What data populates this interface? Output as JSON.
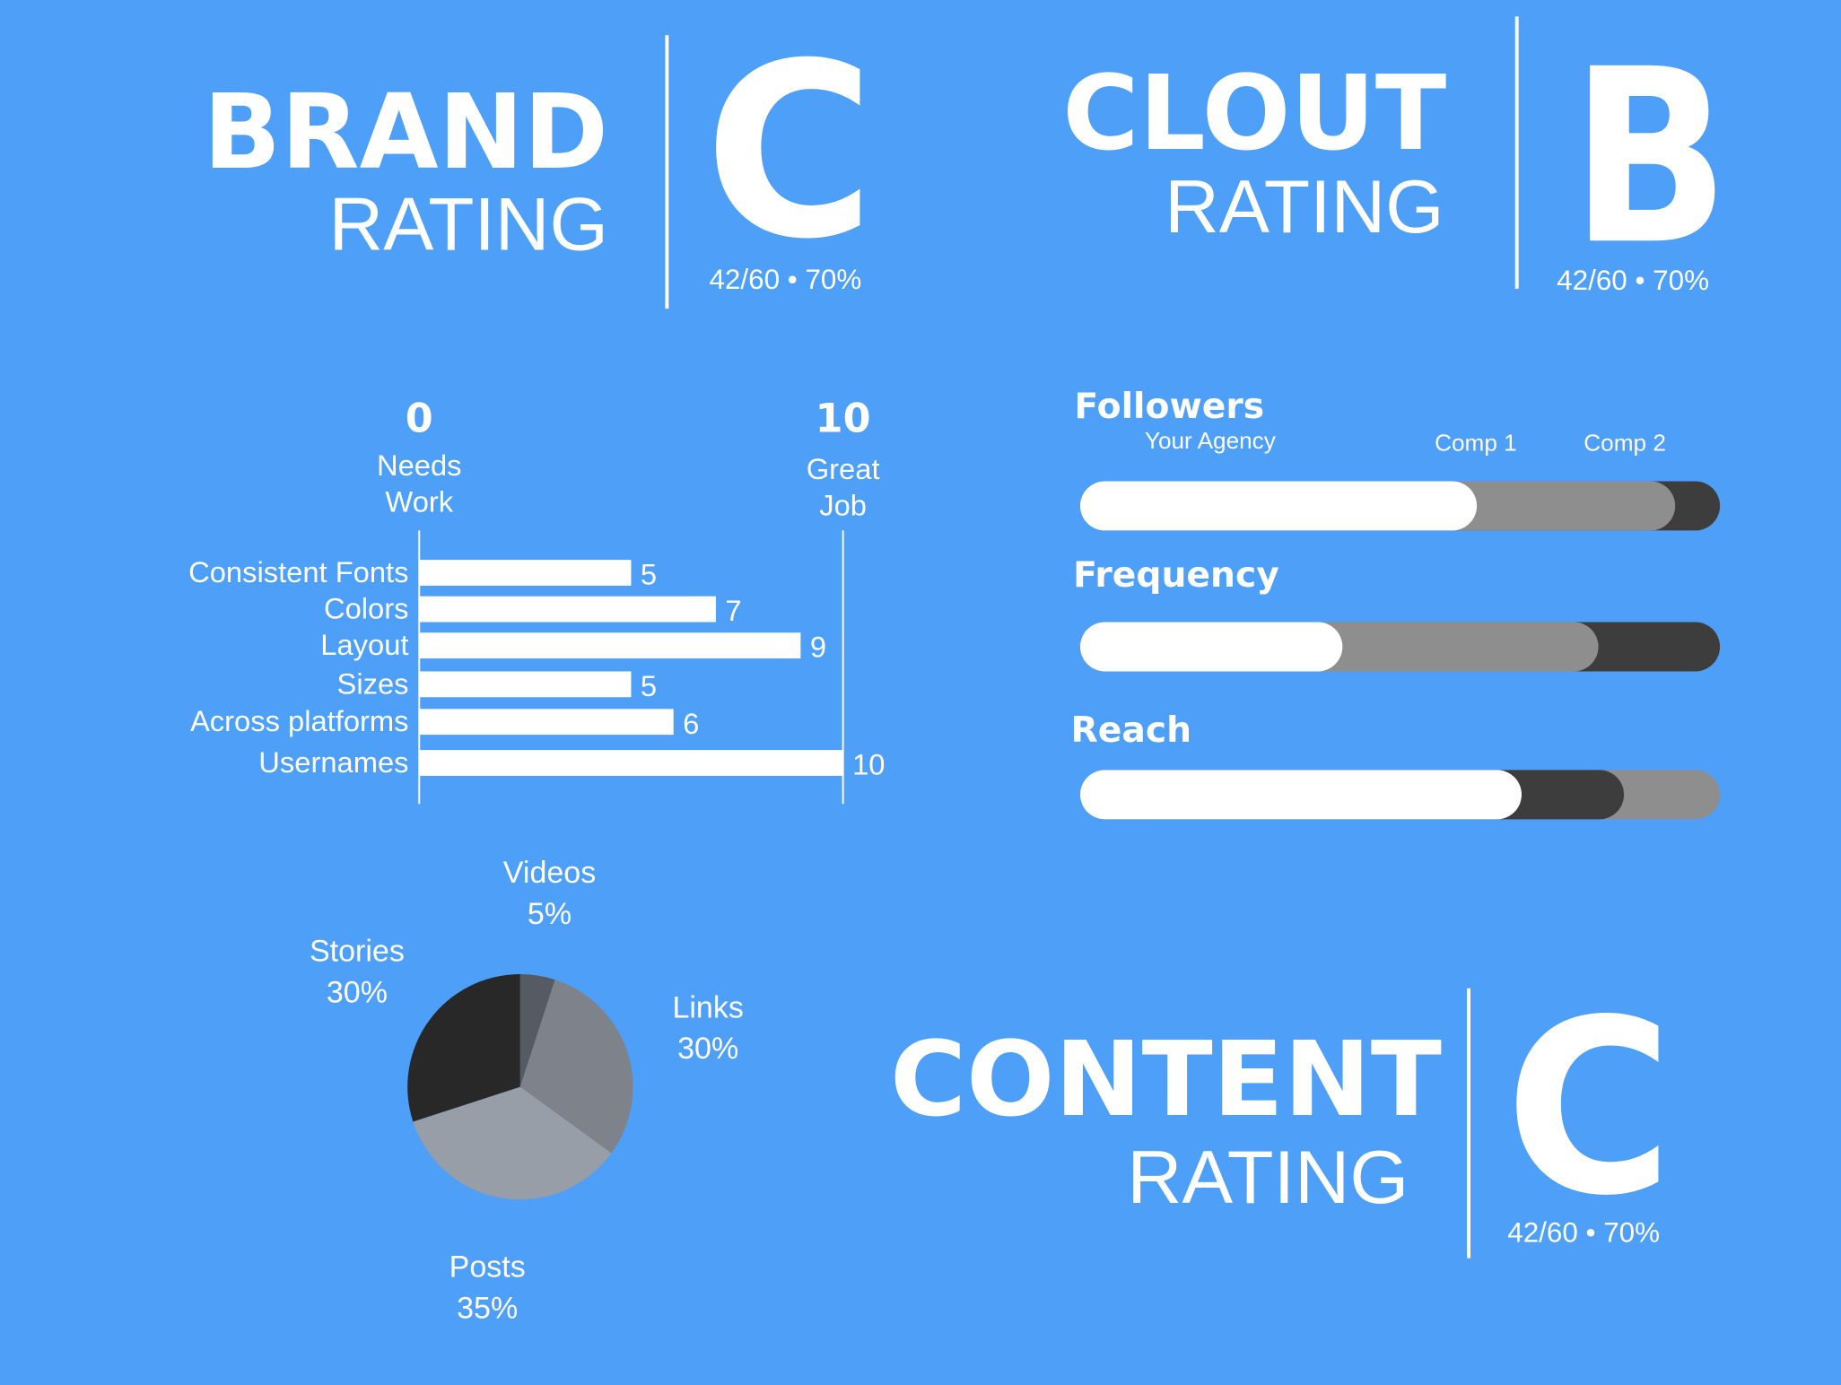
{
  "ratings": [
    {
      "word": "BRAND",
      "sub": "RATING",
      "grade": "C",
      "score": "42/60 • 70%"
    },
    {
      "word": "CLOUT",
      "sub": "RATING",
      "grade": "B",
      "score": "42/60 • 70%"
    },
    {
      "word": "CONTENT",
      "sub": "RATING",
      "grade": "C",
      "score": "42/60 • 70%"
    }
  ],
  "chart_data": [
    {
      "type": "bar",
      "orientation": "horizontal",
      "categories": [
        "Consistent Fonts",
        "Colors",
        "Layout",
        "Sizes",
        "Across platforms",
        "Usernames"
      ],
      "values": [
        5,
        7,
        9,
        5,
        6,
        10
      ],
      "color": "#ffffff",
      "xlim": [
        0,
        10
      ],
      "xticks": [
        0,
        10
      ],
      "annotations": [
        "Needs Work",
        "Great Job"
      ]
    },
    {
      "type": "progress",
      "categories": [
        "Followers",
        "Frequency",
        "Reach"
      ],
      "series": [
        {
          "name": "Your Agency",
          "color": "#ffffff",
          "values": [
            62,
            41,
            69
          ]
        },
        {
          "name": "Comp 1",
          "color": "#8e8e8e",
          "values": [
            93,
            81,
            100
          ]
        },
        {
          "name": "Comp 2",
          "color": "#3d3d3d",
          "values": [
            100,
            100,
            85
          ]
        }
      ],
      "xlim": [
        0,
        100
      ]
    },
    {
      "type": "pie",
      "categories": [
        "Videos",
        "Links",
        "Posts",
        "Stories"
      ],
      "values": [
        5,
        30,
        35,
        30
      ],
      "value_labels": [
        "5%",
        "30%",
        "35%",
        "30%"
      ],
      "colors": [
        "#555a63",
        "#7e828a",
        "#979ea7",
        "#282828"
      ]
    }
  ]
}
